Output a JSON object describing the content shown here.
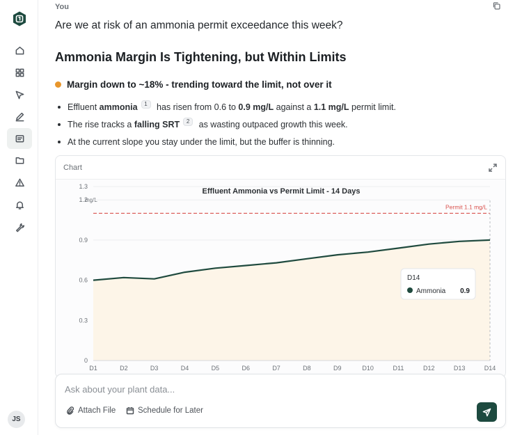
{
  "sidebar": {
    "avatar_initials": "JS",
    "items": [
      {
        "icon": "home-icon"
      },
      {
        "icon": "dashboard-icon"
      },
      {
        "icon": "cursor-icon"
      },
      {
        "icon": "pencil-icon"
      },
      {
        "icon": "chat-icon",
        "active": true
      },
      {
        "icon": "folder-icon"
      },
      {
        "icon": "warning-icon"
      },
      {
        "icon": "bell-icon"
      },
      {
        "icon": "wrench-icon"
      }
    ]
  },
  "conversation": {
    "user_label": "You",
    "question": "Are we at risk of an ammonia permit exceedance this week?",
    "heading": "Ammonia Margin Is Tightening, but Within Limits",
    "status_line": "Margin down to ~18% - trending toward the limit, not over it",
    "status_color": "#e8962c",
    "bullet1": {
      "a": "Effluent ",
      "b": "ammonia",
      "cite": "1",
      "c": " has risen from 0.6 to ",
      "d": "0.9 mg/L",
      "e": " against a ",
      "f": "1.1 mg/L",
      "g": " permit limit."
    },
    "bullet2": {
      "a": "The rise tracks a ",
      "b": "falling SRT",
      "cite": "2",
      "c": " as wasting outpaced growth this week."
    },
    "bullet3": "At the current slope you stay under the limit, but the buffer is thinning."
  },
  "chart_card": {
    "label": "Chart"
  },
  "chart_data": {
    "type": "area",
    "title": "Effluent Ammonia vs Permit Limit - 14 Days",
    "ylabel": "mg/L",
    "categories": [
      "D1",
      "D2",
      "D3",
      "D4",
      "D5",
      "D6",
      "D7",
      "D8",
      "D9",
      "D10",
      "D11",
      "D12",
      "D13",
      "D14"
    ],
    "yticks": [
      0,
      0.3,
      0.6,
      0.9,
      1.2,
      1.3
    ],
    "ylim": [
      0,
      1.3
    ],
    "series": [
      {
        "name": "Ammonia",
        "values": [
          0.6,
          0.62,
          0.61,
          0.66,
          0.69,
          0.71,
          0.73,
          0.76,
          0.79,
          0.81,
          0.84,
          0.87,
          0.89,
          0.9
        ],
        "color": "#1f4a3e"
      }
    ],
    "threshold": {
      "label": "Permit 1.1 mg/L",
      "value": 1.1,
      "color": "#d9534f"
    },
    "tooltip": {
      "category": "D14",
      "series": "Ammonia",
      "value": "0.9"
    },
    "area_color": "#fdf5e8",
    "grid": true
  },
  "composer": {
    "placeholder": "Ask about your plant data...",
    "attach_label": "Attach File",
    "schedule_label": "Schedule for Later"
  }
}
